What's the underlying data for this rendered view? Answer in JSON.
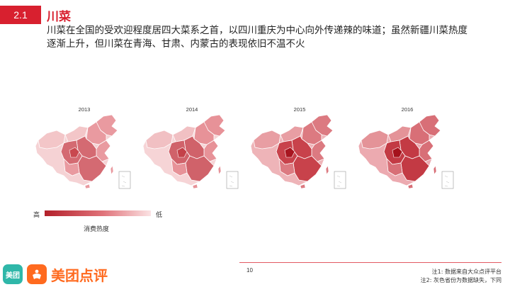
{
  "header": {
    "section_number": "2.1",
    "title": "川菜"
  },
  "description": "川菜在全国的受欢迎程度居四大菜系之首，以四川重庆为中心向外传递辣的味道；虽然新疆川菜热度逐渐上升，但川菜在青海、甘肃、内蒙古的表现依旧不温不火",
  "maps": [
    {
      "year": "2013"
    },
    {
      "year": "2014"
    },
    {
      "year": "2015"
    },
    {
      "year": "2016"
    }
  ],
  "legend": {
    "high_label": "高",
    "low_label": "低",
    "caption": "消费热度",
    "colors": [
      "#b3202a",
      "#e0737a",
      "#fbe3e4"
    ]
  },
  "footer": {
    "page_number": "10",
    "note1": "注1: 数据来自大众点评平台",
    "note2": "注2: 灰色省份为数据缺失，下同",
    "brand_icon_text": "美团",
    "brand_name": "美团点评"
  },
  "accent_color": "#d8202f"
}
